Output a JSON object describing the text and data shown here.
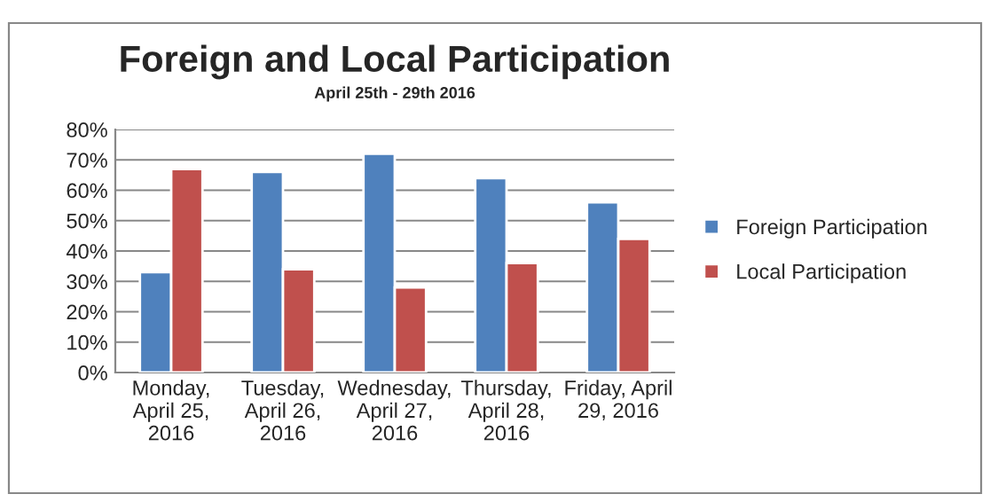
{
  "chart_data": {
    "type": "bar",
    "title": "Foreign and Local Participation",
    "subtitle": "April 25th - 29th 2016",
    "categories": [
      "Monday,\nApril 25,\n2016",
      "Tuesday,\nApril 26,\n2016",
      "Wednesday,\nApril 27,\n2016",
      "Thursday,\nApril 28,\n2016",
      "Friday, April\n29, 2016"
    ],
    "series": [
      {
        "name": "Foreign Participation",
        "color": "#4f81bd",
        "values": [
          33,
          66,
          72,
          64,
          56
        ]
      },
      {
        "name": "Local Participation",
        "color": "#c0504d",
        "values": [
          67,
          34,
          28,
          36,
          44
        ]
      }
    ],
    "ylim": [
      0,
      80
    ],
    "yticks": [
      {
        "value": 0,
        "label": "0%"
      },
      {
        "value": 10,
        "label": "10%"
      },
      {
        "value": 20,
        "label": "20%"
      },
      {
        "value": 30,
        "label": "30%"
      },
      {
        "value": 40,
        "label": "40%"
      },
      {
        "value": 50,
        "label": "50%"
      },
      {
        "value": 60,
        "label": "60%"
      },
      {
        "value": 70,
        "label": "70%"
      },
      {
        "value": 80,
        "label": "80%"
      }
    ],
    "grid": "y",
    "legend": "right"
  }
}
